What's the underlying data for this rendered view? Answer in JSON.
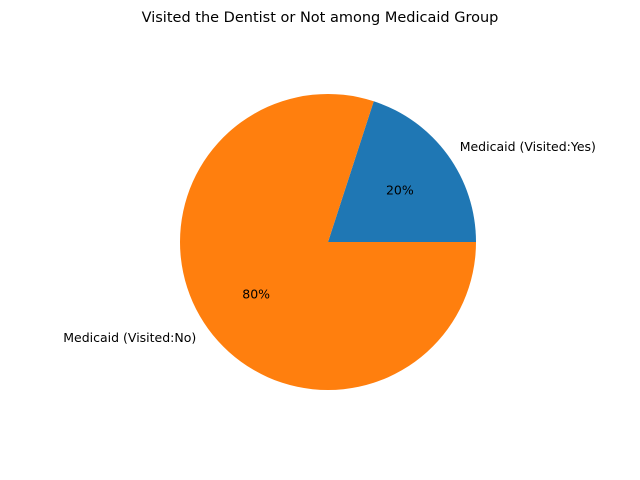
{
  "chart_data": {
    "type": "pie",
    "title": "Visited the Dentist or Not among Medicaid Group",
    "categories": [
      "Medicaid (Visited:Yes)",
      "Medicaid (Visited:No)"
    ],
    "values": [
      20,
      80
    ],
    "percent_labels": [
      "20%",
      "80%"
    ],
    "colors": [
      "#1f77b4",
      "#ff7f0e"
    ],
    "start_angle_deg": 0,
    "direction": "counterclockwise",
    "legend": "none"
  }
}
